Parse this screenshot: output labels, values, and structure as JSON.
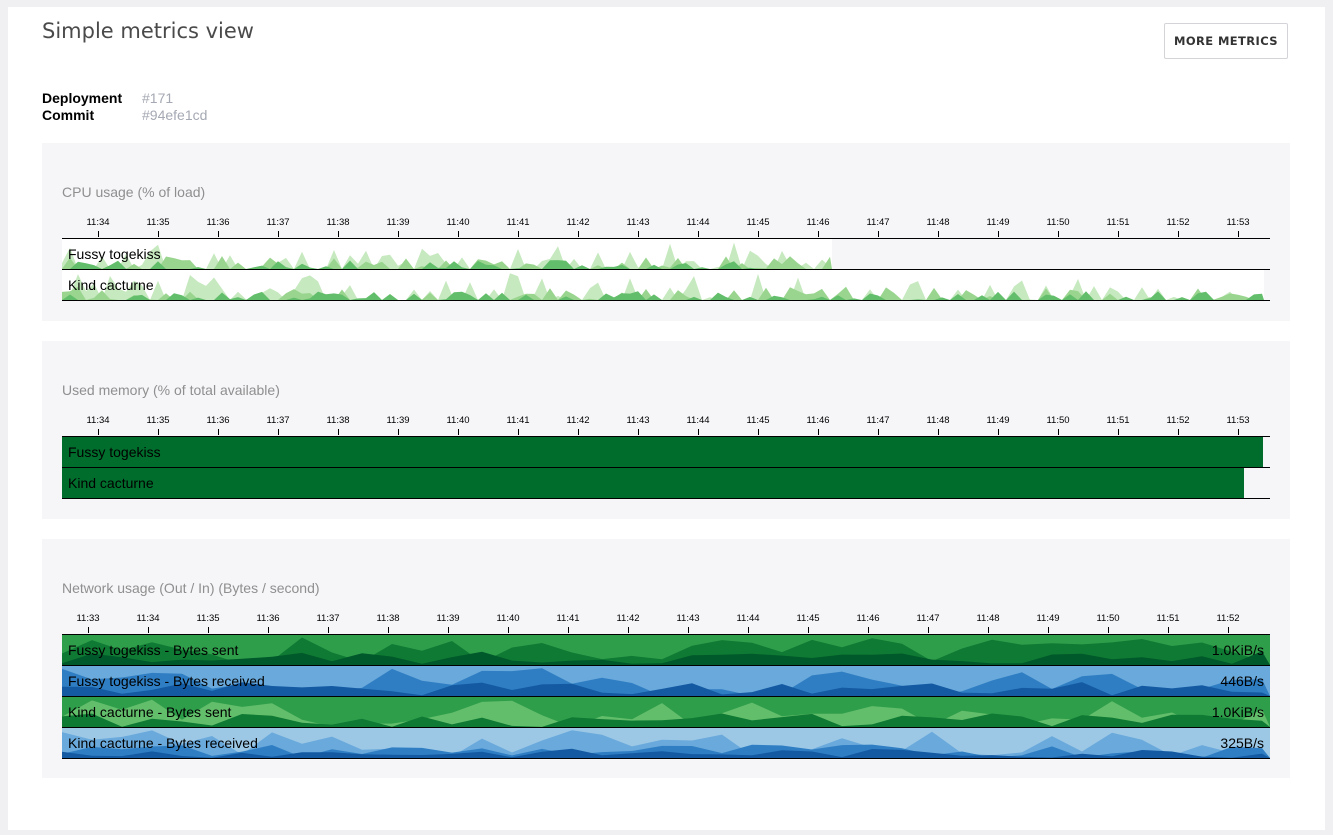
{
  "page": {
    "title": "Simple metrics view",
    "more_button": "MORE METRICS"
  },
  "meta": {
    "deployment_label": "Deployment",
    "deployment_value": "#171",
    "commit_label": "Commit",
    "commit_value": "#94efe1cd"
  },
  "colors": {
    "green_scale": [
      "#c6e9bf",
      "#9ad58f",
      "#63be6b",
      "#2f9e4b",
      "#0f7a33",
      "#00592a"
    ],
    "blue_scale": [
      "#c5dcee",
      "#9cc8e6",
      "#6aa9db",
      "#2f7ec3",
      "#145aa3",
      "#0a3f82"
    ],
    "memory_fill": "#006d2c"
  },
  "cpu": {
    "title": "CPU usage (% of load)",
    "ticks": [
      "11:34",
      "11:35",
      "11:36",
      "11:37",
      "11:38",
      "11:39",
      "11:40",
      "11:41",
      "11:42",
      "11:43",
      "11:44",
      "11:45",
      "11:46",
      "11:47",
      "11:48",
      "11:49",
      "11:50",
      "11:51",
      "11:52",
      "11:53"
    ],
    "rows": [
      {
        "label": "Fussy togekiss"
      },
      {
        "label": "Kind cacturne"
      }
    ]
  },
  "memory": {
    "title": "Used memory (% of total available)",
    "ticks": [
      "11:34",
      "11:35",
      "11:36",
      "11:37",
      "11:38",
      "11:39",
      "11:40",
      "11:41",
      "11:42",
      "11:43",
      "11:44",
      "11:45",
      "11:46",
      "11:47",
      "11:48",
      "11:49",
      "11:50",
      "11:51",
      "11:52",
      "11:53"
    ],
    "rows": [
      {
        "label": "Fussy togekiss"
      },
      {
        "label": "Kind cacturne"
      }
    ]
  },
  "network": {
    "title": "Network usage (Out / In) (Bytes / second)",
    "ticks": [
      "11:33",
      "11:34",
      "11:35",
      "11:36",
      "11:37",
      "11:38",
      "11:39",
      "11:40",
      "11:41",
      "11:42",
      "11:43",
      "11:44",
      "11:45",
      "11:46",
      "11:47",
      "11:48",
      "11:49",
      "11:50",
      "11:51",
      "11:52"
    ],
    "rows": [
      {
        "label": "Fussy togekiss - Bytes sent",
        "value": "1.0KiB/s",
        "scale": "green"
      },
      {
        "label": "Fussy togekiss - Bytes received",
        "value": "446B/s",
        "scale": "blue"
      },
      {
        "label": "Kind cacturne - Bytes sent",
        "value": "1.0KiB/s",
        "scale": "green"
      },
      {
        "label": "Kind cacturne - Bytes received",
        "value": "325B/s",
        "scale": "blue"
      }
    ]
  }
}
